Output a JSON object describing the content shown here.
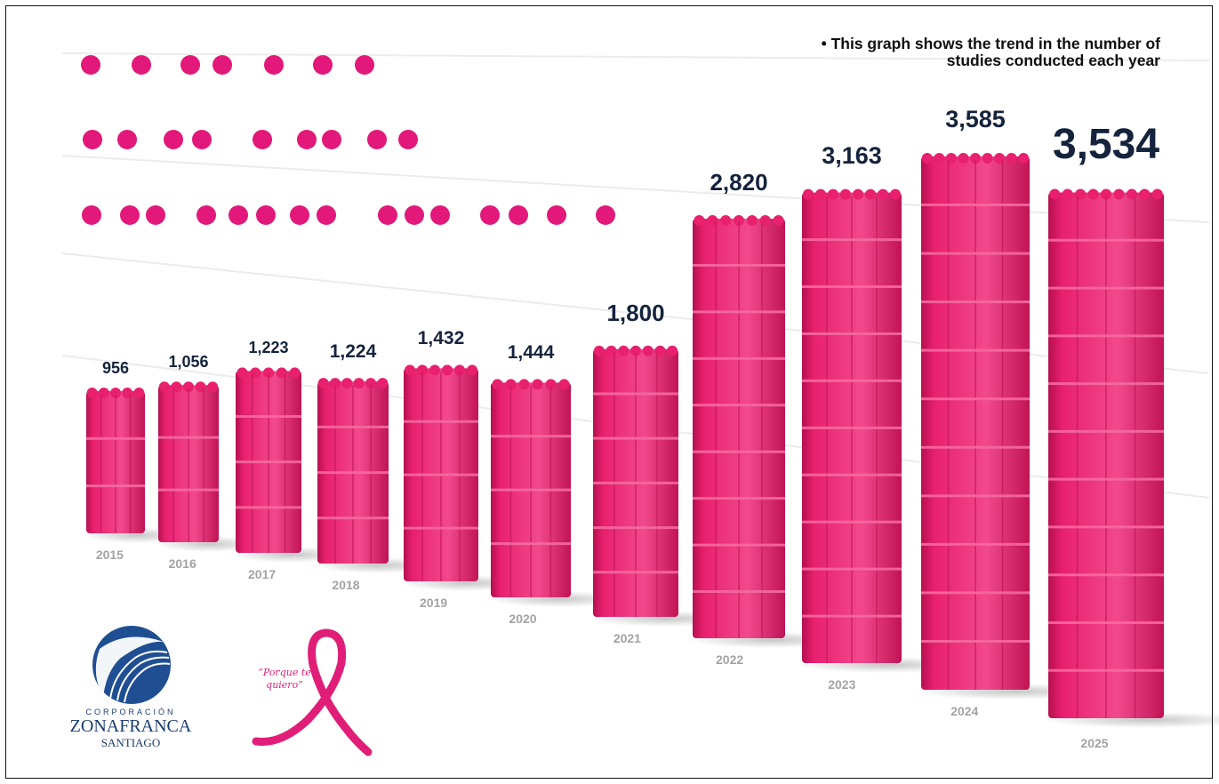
{
  "note": "• This graph shows the trend in the number of studies conducted each year",
  "chart_data": {
    "type": "bar",
    "categories": [
      "2015",
      "2016",
      "2017",
      "2018",
      "2019",
      "2020",
      "2021",
      "2022",
      "2023",
      "2024",
      "2025"
    ],
    "values": [
      956,
      1056,
      1223,
      1224,
      1432,
      1444,
      1800,
      2820,
      3163,
      3585,
      3534
    ],
    "value_labels": [
      "956",
      "1,056",
      "1,223",
      "1,224",
      "1,432",
      "1,444",
      "1,800",
      "2,820",
      "3,163",
      "3,585",
      "3,534"
    ],
    "title": "",
    "xlabel": "",
    "ylabel": "",
    "grid": false,
    "legend": "none",
    "bar_color": "#e8206e"
  },
  "logos": {
    "left": {
      "line1": "CORPORACIÓN",
      "line2": "ZONAFRANCA",
      "line3": "SANTIAGO",
      "color": "#1a3c6e"
    },
    "right": {
      "slogan": "“Porque te quiero”",
      "color": "#e01e78"
    }
  },
  "colors": {
    "dots": "#e2187a",
    "value_text": "#15233d",
    "year_text": "#a3a3a3"
  }
}
